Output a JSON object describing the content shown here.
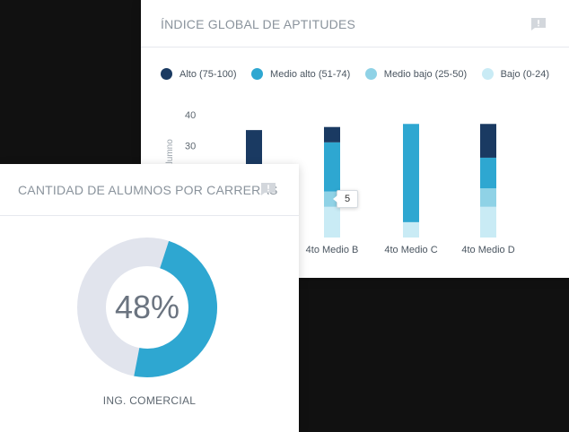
{
  "aptitudes_card": {
    "title": "ÍNDICE GLOBAL DE APTITUDES",
    "comment_icon": "comment-alert-icon",
    "legend": [
      {
        "label": "Alto (75-100)",
        "color": "#1a3a62"
      },
      {
        "label": "Medio alto (51-74)",
        "color": "#2ea7d1"
      },
      {
        "label": "Medio bajo (25-50)",
        "color": "#8fd2e6"
      },
      {
        "label": "Bajo (0-24)",
        "color": "#c9ebf5"
      }
    ],
    "tooltip_value": "5"
  },
  "chart_data": {
    "type": "bar",
    "stacked": true,
    "ylabel": "alumno",
    "yticks": [
      40,
      30
    ],
    "categories": [
      "",
      "4to Medio B",
      "4to Medio C",
      "4to Medio D"
    ],
    "series": [
      {
        "name": "Bajo (0-24)",
        "values": [
          0,
          10,
          5,
          10
        ],
        "color": "#c9ebf5"
      },
      {
        "name": "Medio bajo (25-50)",
        "values": [
          0,
          5,
          0,
          6
        ],
        "color": "#8fd2e6"
      },
      {
        "name": "Medio alto (51-74)",
        "values": [
          0,
          16,
          32,
          10
        ],
        "color": "#2ea7d1"
      },
      {
        "name": "Alto (75-100)",
        "values": [
          35,
          5,
          0,
          11
        ],
        "color": "#1a3a62"
      }
    ],
    "ylim": [
      0,
      40
    ]
  },
  "careers_card": {
    "title": "CANTIDAD DE ALUMNOS POR CARRERAS",
    "comment_icon": "comment-alert-icon",
    "percent_label": "48%",
    "percent_value": 48,
    "caption": "ING. COMERCIAL",
    "colors": {
      "filled": "#2ea7d1",
      "remaining": "#e1e4ed"
    }
  }
}
